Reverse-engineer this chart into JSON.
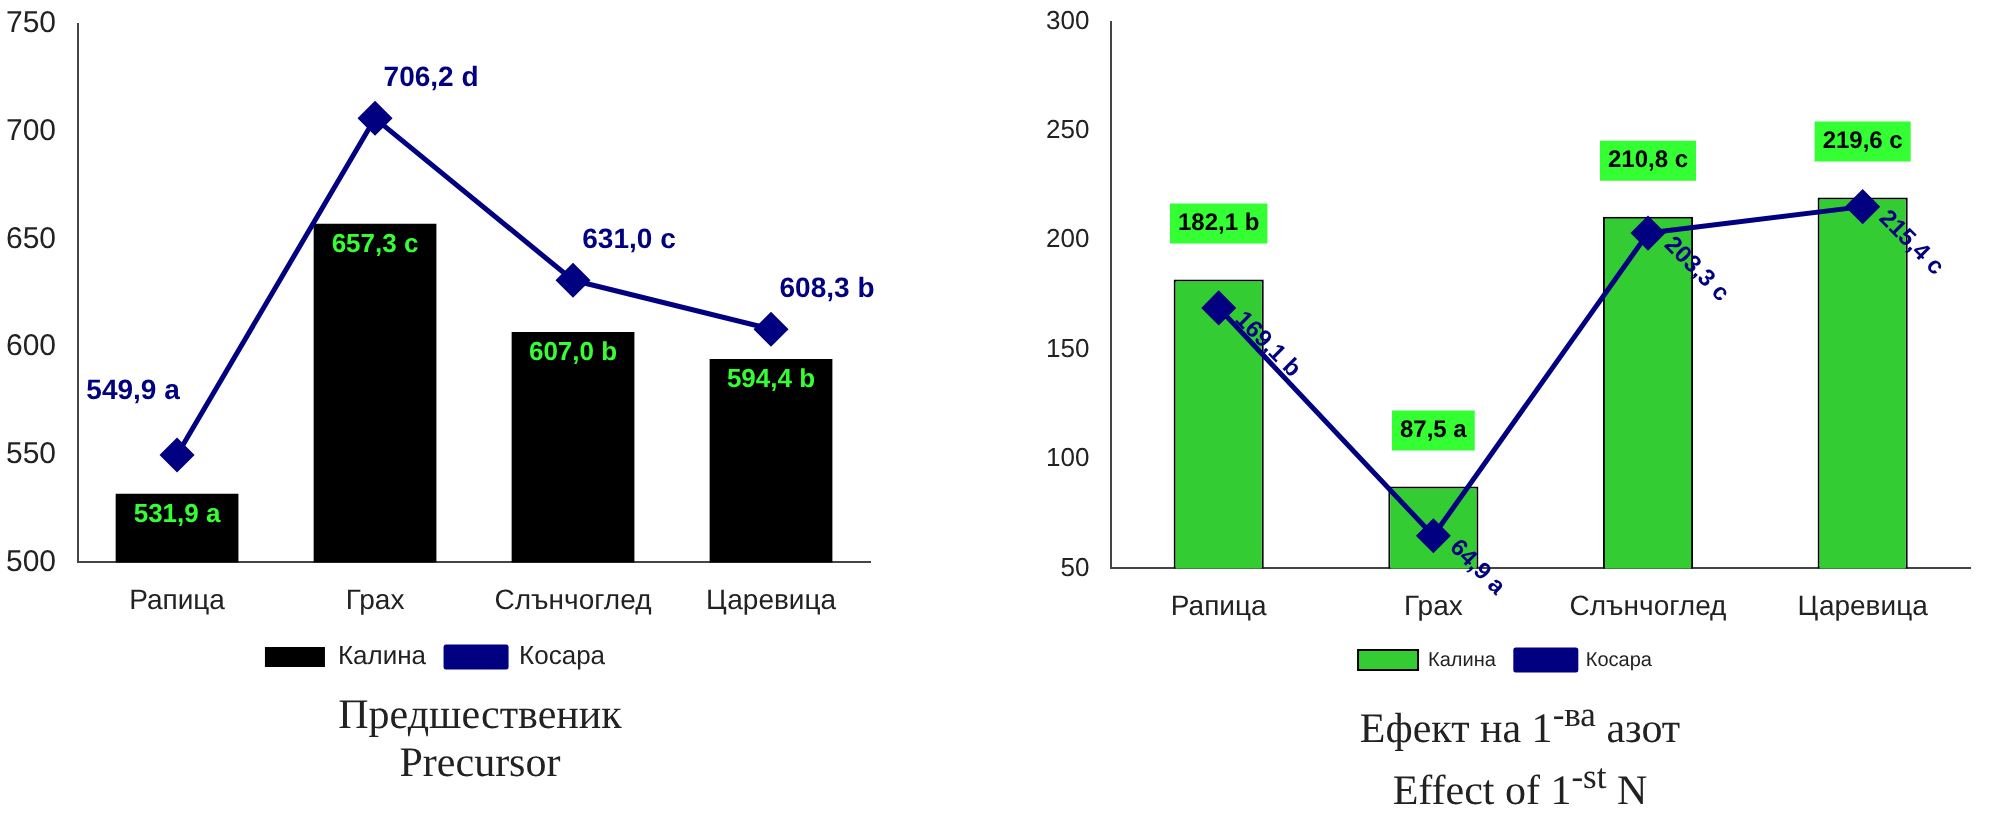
{
  "chart_data": [
    {
      "type": "bar",
      "title": "Предшественик",
      "subtitle": "Precursor",
      "categories": [
        "Рапица",
        "Грах",
        "Слънчоглед",
        "Царевица"
      ],
      "ylim": [
        500,
        750
      ],
      "yticks": [
        500,
        550,
        600,
        650,
        700,
        750
      ],
      "grid": false,
      "legend": "bottom",
      "marker": "diamond",
      "series": [
        {
          "name": "Калина",
          "color": "#000000",
          "values": [
            531.9,
            657.3,
            607.0,
            594.4
          ],
          "value_labels": [
            "531,9 a",
            "657,3 c",
            "607,0 b",
            "594,4 b"
          ]
        },
        {
          "name": "Косара",
          "type": "line",
          "color": "#000080",
          "values": [
            549.9,
            706.2,
            631.0,
            608.3
          ],
          "value_labels": [
            "549,9 a",
            "706,2 d",
            "631,0 c",
            "608,3 b"
          ]
        }
      ]
    },
    {
      "type": "bar",
      "title": "Ефект на 1$^{-ва}$ азот",
      "subtitle": "Effect of 1$^{-st}$ N",
      "categories": [
        "Рапица",
        "Грах",
        "Слънчоглед",
        "Царевица"
      ],
      "ylim": [
        50,
        300
      ],
      "yticks": [
        50,
        100,
        150,
        200,
        250,
        300
      ],
      "grid": false,
      "legend": "bottom",
      "marker": "diamond",
      "series": [
        {
          "name": "Калина",
          "color": "#33cc33",
          "values": [
            182.1,
            87.5,
            210.8,
            219.6
          ],
          "value_labels": [
            "182,1 b",
            "87,5 a",
            "210,8 c",
            "219,6 c"
          ]
        },
        {
          "name": "Косара",
          "type": "line",
          "color": "#000080",
          "values": [
            169.1,
            64.9,
            203.3,
            215.4
          ],
          "value_labels": [
            "169,1 b",
            "64,9 a",
            "203,3 c",
            "215,4 c"
          ]
        }
      ]
    }
  ]
}
